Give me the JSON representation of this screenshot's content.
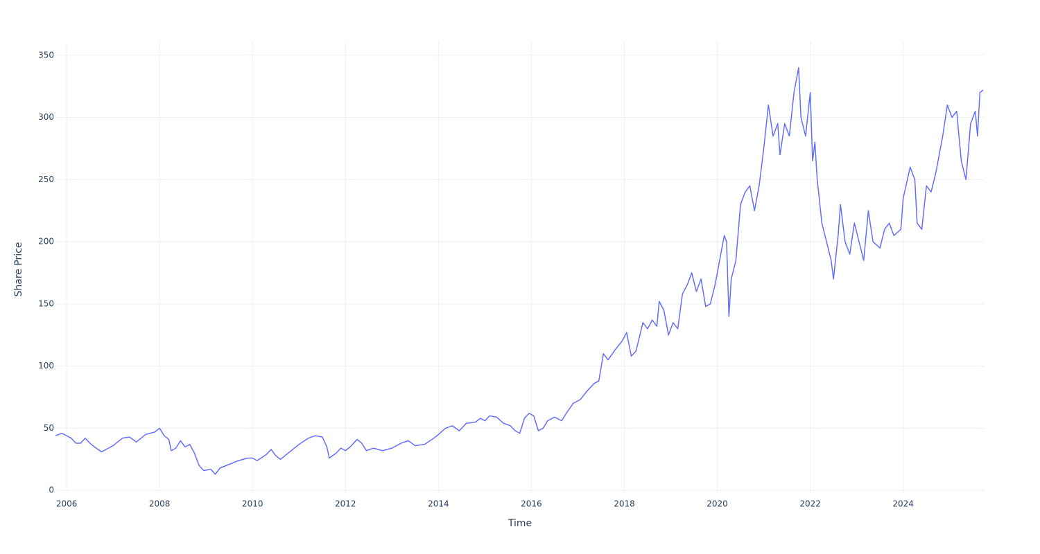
{
  "chart_data": {
    "type": "line",
    "x_label": "Time",
    "y_label": "Share Price",
    "color": "#636efa",
    "grid": true,
    "xlim": [
      2005.76,
      2025.75
    ],
    "xticks": [
      2006,
      2008,
      2010,
      2012,
      2014,
      2016,
      2018,
      2020,
      2022,
      2024
    ],
    "ylim": [
      -1,
      361
    ],
    "yticks": [
      0,
      50,
      100,
      150,
      200,
      250,
      300,
      350
    ],
    "x": [
      2005.76,
      2005.9,
      2006.0,
      2006.1,
      2006.2,
      2006.3,
      2006.4,
      2006.5,
      2006.6,
      2006.75,
      2006.9,
      2007.0,
      2007.2,
      2007.35,
      2007.5,
      2007.7,
      2007.9,
      2008.0,
      2008.1,
      2008.2,
      2008.25,
      2008.35,
      2008.45,
      2008.55,
      2008.65,
      2008.75,
      2008.85,
      2008.95,
      2009.1,
      2009.2,
      2009.3,
      2009.5,
      2009.7,
      2009.9,
      2010.0,
      2010.1,
      2010.3,
      2010.4,
      2010.5,
      2010.6,
      2010.8,
      2011.0,
      2011.2,
      2011.35,
      2011.5,
      2011.6,
      2011.65,
      2011.8,
      2011.9,
      2012.0,
      2012.1,
      2012.25,
      2012.35,
      2012.45,
      2012.6,
      2012.8,
      2013.0,
      2013.2,
      2013.35,
      2013.5,
      2013.7,
      2013.9,
      2014.0,
      2014.15,
      2014.3,
      2014.45,
      2014.6,
      2014.8,
      2014.9,
      2015.0,
      2015.1,
      2015.25,
      2015.4,
      2015.55,
      2015.65,
      2015.75,
      2015.85,
      2015.95,
      2016.05,
      2016.15,
      2016.25,
      2016.35,
      2016.5,
      2016.65,
      2016.75,
      2016.9,
      2017.05,
      2017.2,
      2017.35,
      2017.45,
      2017.55,
      2017.65,
      2017.8,
      2017.95,
      2018.05,
      2018.15,
      2018.25,
      2018.4,
      2018.5,
      2018.6,
      2018.7,
      2018.75,
      2018.85,
      2018.95,
      2019.05,
      2019.15,
      2019.25,
      2019.35,
      2019.45,
      2019.55,
      2019.65,
      2019.75,
      2019.85,
      2019.95,
      2020.05,
      2020.15,
      2020.2,
      2020.25,
      2020.3,
      2020.4,
      2020.5,
      2020.6,
      2020.7,
      2020.8,
      2020.9,
      2021.0,
      2021.1,
      2021.2,
      2021.3,
      2021.35,
      2021.45,
      2021.55,
      2021.65,
      2021.75,
      2021.8,
      2021.9,
      2022.0,
      2022.05,
      2022.1,
      2022.15,
      2022.25,
      2022.35,
      2022.45,
      2022.5,
      2022.6,
      2022.65,
      2022.75,
      2022.85,
      2022.95,
      2023.05,
      2023.15,
      2023.25,
      2023.35,
      2023.5,
      2023.6,
      2023.7,
      2023.8,
      2023.95,
      2024.0,
      2024.15,
      2024.25,
      2024.3,
      2024.4,
      2024.5,
      2024.6,
      2024.7,
      2024.85,
      2024.95,
      2025.05,
      2025.15,
      2025.25,
      2025.35,
      2025.45,
      2025.55,
      2025.6,
      2025.65,
      2025.72
    ],
    "values": [
      44,
      46,
      44,
      42,
      38,
      38,
      42,
      38,
      35,
      31,
      34,
      36,
      42,
      43,
      39,
      45,
      47,
      50,
      44,
      41,
      32,
      34,
      40,
      35,
      37,
      30,
      20,
      16,
      17,
      13,
      18,
      21,
      24,
      26,
      26,
      24,
      29,
      33,
      28,
      25,
      31,
      37,
      42,
      44,
      43,
      35,
      26,
      30,
      34,
      32,
      35,
      41,
      38,
      32,
      34,
      32,
      34,
      38,
      40,
      36,
      37,
      42,
      45,
      50,
      52,
      48,
      54,
      55,
      58,
      56,
      60,
      59,
      54,
      52,
      48,
      46,
      58,
      62,
      60,
      48,
      50,
      56,
      59,
      56,
      62,
      70,
      73,
      80,
      86,
      88,
      110,
      105,
      113,
      120,
      127,
      108,
      112,
      135,
      130,
      137,
      132,
      152,
      145,
      125,
      135,
      130,
      158,
      165,
      175,
      160,
      170,
      148,
      150,
      165,
      185,
      205,
      200,
      140,
      170,
      185,
      230,
      240,
      245,
      225,
      245,
      275,
      310,
      285,
      295,
      270,
      295,
      285,
      320,
      340,
      300,
      285,
      320,
      265,
      280,
      250,
      215,
      200,
      185,
      170,
      205,
      230,
      200,
      190,
      215,
      200,
      185,
      225,
      200,
      195,
      210,
      215,
      205,
      210,
      235,
      260,
      250,
      215,
      210,
      245,
      240,
      255,
      285,
      310,
      300,
      305,
      265,
      250,
      295,
      305,
      285,
      320,
      322
    ]
  }
}
